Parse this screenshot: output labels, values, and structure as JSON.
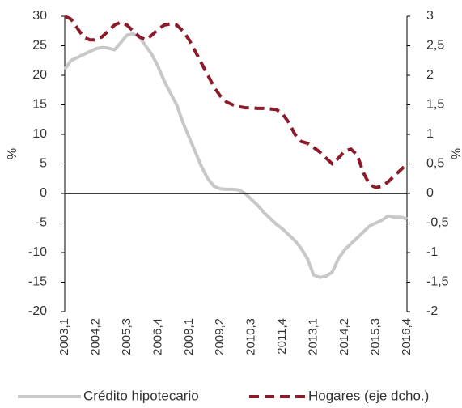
{
  "chart_data": {
    "type": "line",
    "y_label": "%",
    "y2_label": "%",
    "categories": [
      "2003,1",
      null,
      null,
      null,
      null,
      "2004,2",
      null,
      null,
      null,
      null,
      "2005,3",
      null,
      null,
      null,
      null,
      "2006,4",
      null,
      null,
      null,
      null,
      "2008,1",
      null,
      null,
      null,
      null,
      "2009,2",
      null,
      null,
      null,
      null,
      "2010,3",
      null,
      null,
      null,
      null,
      "2011,4",
      null,
      null,
      null,
      null,
      "2013,1",
      null,
      null,
      null,
      null,
      "2014,2",
      null,
      null,
      null,
      null,
      "2015,3",
      null,
      null,
      null,
      null,
      "2016,4"
    ],
    "series": [
      {
        "name": "Crédito hipotecario",
        "color": "#c8c8c8",
        "line_style": "solid",
        "axis": "y",
        "values": [
          21,
          22.5,
          23,
          23.5,
          24,
          24.5,
          24.7,
          24.6,
          24.3,
          25.5,
          26.8,
          27,
          26.5,
          25,
          23.5,
          21.5,
          19,
          17,
          15,
          12,
          9.5,
          7,
          4.5,
          2.5,
          1.2,
          0.8,
          0.7,
          0.7,
          0.6,
          0,
          -1,
          -2,
          -3.2,
          -4.2,
          -5.2,
          -6,
          -7,
          -8,
          -9.3,
          -11,
          -13.8,
          -14.2,
          -14,
          -13.3,
          -11,
          -9.5,
          -8.5,
          -7.5,
          -6.5,
          -5.5,
          -5,
          -4.5,
          -3.8,
          -4,
          -4,
          -4.3
        ]
      },
      {
        "name": "Hogares (eje dcho.)",
        "color": "#8b1a2b",
        "line_style": "dashed",
        "axis": "y2",
        "values": [
          3,
          2.95,
          2.8,
          2.65,
          2.6,
          2.6,
          2.65,
          2.75,
          2.85,
          2.9,
          2.85,
          2.75,
          2.65,
          2.6,
          2.68,
          2.78,
          2.85,
          2.87,
          2.85,
          2.75,
          2.6,
          2.4,
          2.2,
          2.0,
          1.8,
          1.65,
          1.55,
          1.5,
          1.47,
          1.45,
          1.45,
          1.44,
          1.44,
          1.43,
          1.42,
          1.35,
          1.2,
          1.0,
          0.88,
          0.85,
          0.78,
          0.7,
          0.6,
          0.5,
          0.6,
          0.72,
          0.75,
          0.65,
          0.35,
          0.15,
          0.1,
          0.12,
          0.2,
          0.3,
          0.4,
          0.5
        ]
      }
    ],
    "ylim": [
      -20,
      30
    ],
    "yticks": [
      -20,
      -15,
      -10,
      -5,
      0,
      5,
      10,
      15,
      20,
      25,
      30
    ],
    "y2lim": [
      -2,
      3
    ],
    "y2ticks": [
      -2,
      {
        "value": -1.5,
        "label": "-1,5"
      },
      -1,
      {
        "value": -0.5,
        "label": "-0,5"
      },
      0,
      {
        "value": 0.5,
        "label": "0,5"
      },
      1,
      {
        "value": 1.5,
        "label": "1,5"
      },
      2,
      {
        "value": 2.5,
        "label": "2,5"
      },
      3
    ],
    "zero_line": true,
    "legend": "bottom"
  }
}
